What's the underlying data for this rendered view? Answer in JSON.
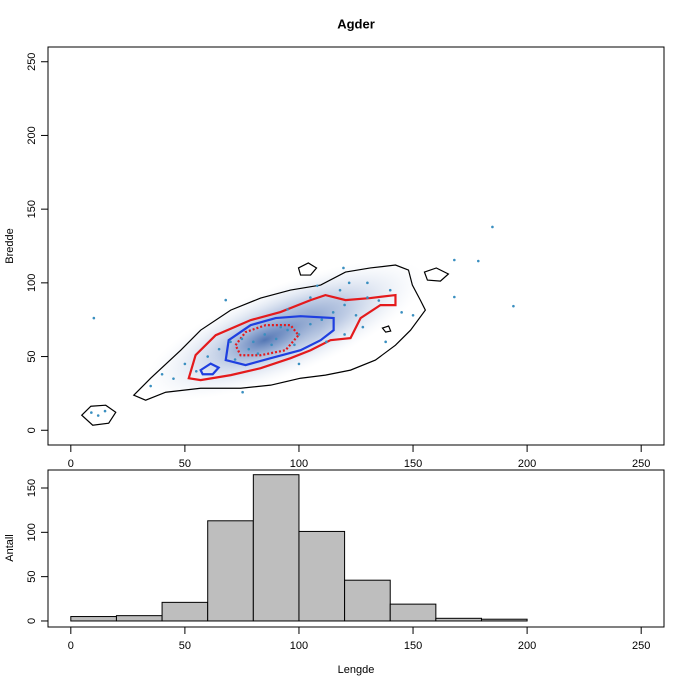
{
  "chart_data": [
    {
      "type": "scatter",
      "title": "Agder",
      "y_label": "Bredde",
      "color": "#3a8fc0",
      "x": [
        10.1,
        67.9,
        184.8,
        168.1,
        178.6,
        194.0,
        168.1,
        75.3,
        119.5,
        80,
        85,
        90,
        78,
        95,
        88,
        92,
        75,
        100,
        82,
        98,
        105,
        110,
        115,
        120,
        125,
        130,
        135,
        140,
        145,
        150,
        60,
        55,
        50,
        45,
        35,
        40,
        65,
        70,
        72,
        100,
        112,
        120,
        128,
        138,
        118,
        105,
        95,
        9,
        12,
        15,
        122,
        130,
        108
      ],
      "y": [
        76.1,
        88.3,
        137.9,
        115.5,
        114.8,
        84.2,
        90.4,
        25.8,
        110.1,
        60,
        65,
        62,
        55,
        68,
        58,
        70,
        62,
        65,
        52,
        58,
        72,
        75,
        80,
        85,
        78,
        90,
        88,
        95,
        80,
        78,
        50,
        40,
        45,
        35,
        30,
        38,
        55,
        60,
        48,
        45,
        60,
        65,
        70,
        60,
        95,
        90,
        82,
        12,
        10,
        13,
        100,
        100,
        98
      ],
      "contours": [
        {
          "color": "#000000",
          "style": "solid",
          "x": [
            27.6,
            35.0,
            48.2,
            56.9,
            70.1,
            83.2,
            96.3,
            109.5,
            120.4,
            131.3,
            142.3,
            148.0,
            149.7,
            153.2,
            155.4,
            148.9,
            142.3,
            133.5,
            122.6,
            111.6,
            100.7,
            87.6,
            74.4,
            56.9,
            41.6,
            32.8
          ],
          "y": [
            23.8,
            35.3,
            54.3,
            67.9,
            81.5,
            89.7,
            95.1,
            98.5,
            107.3,
            110.1,
            112.1,
            108.7,
            98.5,
            88.3,
            81.5,
            67.9,
            57.7,
            47.6,
            40.8,
            37.4,
            35.3,
            30.6,
            28.5,
            28.5,
            25.8,
            20.4
          ]
        },
        {
          "color": "#000000",
          "style": "solid",
          "x": [
            4.8,
            8.8,
            15.3,
            19.7,
            16.6,
            9.6
          ],
          "y": [
            10.2,
            16.3,
            17.0,
            12.2,
            4.8,
            3.4
          ]
        },
        {
          "color": "#000000",
          "style": "solid",
          "x": [
            99.8,
            104.1,
            107.7,
            105.1,
            100.7
          ],
          "y": [
            110.1,
            113.5,
            110.1,
            105.3,
            105.3
          ]
        },
        {
          "color": "#000000",
          "style": "solid",
          "x": [
            155.0,
            160.2,
            165.5,
            162.0,
            156.3
          ],
          "y": [
            107.3,
            110.1,
            106.0,
            101.2,
            101.9
          ]
        },
        {
          "color": "#000000",
          "style": "solid",
          "x": [
            136.6,
            139.3,
            140.2,
            138.0
          ],
          "y": [
            69.3,
            70.7,
            67.3,
            66.6
          ]
        },
        {
          "color": "#e41a1c",
          "style": "solid",
          "x": [
            51.7,
            54.7,
            63.5,
            78.8,
            91.9,
            105.1,
            111.6,
            120.4,
            131.3,
            142.3,
            142.3,
            135.7,
            127.0,
            122.6,
            113.8,
            105.1,
            96.3,
            83.2,
            70.1,
            56.9
          ],
          "y": [
            35.3,
            51.0,
            64.5,
            74.7,
            80.2,
            88.3,
            91.7,
            88.3,
            89.7,
            91.7,
            84.9,
            84.9,
            76.1,
            62.5,
            61.1,
            54.3,
            48.9,
            42.1,
            37.4,
            34.0
          ]
        },
        {
          "color": "#1f3fe0",
          "style": "solid",
          "x": [
            67.9,
            69.2,
            78.8,
            89.8,
            100.7,
            115.2,
            115.2,
            109.5,
            100.7,
            87.6,
            76.6
          ],
          "y": [
            47.6,
            61.1,
            71.3,
            76.1,
            77.4,
            76.1,
            67.9,
            61.1,
            54.3,
            48.9,
            44.2
          ]
        },
        {
          "color": "#1f3fe0",
          "style": "solid",
          "x": [
            56.9,
            61.3,
            64.8,
            62.2,
            57.8
          ],
          "y": [
            40.8,
            45.2,
            42.5,
            38.0,
            38.0
          ]
        },
        {
          "color": "#e41a1c",
          "style": "dotted",
          "x": [
            72.2,
            76.6,
            85.4,
            96.3,
            99.8,
            94.1,
            83.2,
            74.4
          ],
          "y": [
            57.7,
            66.6,
            71.3,
            71.3,
            64.5,
            54.3,
            50.9,
            50.9
          ]
        }
      ],
      "xlim": [
        -10,
        260
      ],
      "ylim": [
        -10,
        260
      ],
      "xticks": [
        0,
        50,
        100,
        150,
        200,
        250
      ],
      "yticks": [
        0,
        50,
        100,
        150,
        200,
        250
      ]
    },
    {
      "type": "histogram",
      "y_label": "Antall",
      "x_label": "Lengde",
      "color": "#bebebe",
      "bins": [
        0,
        20,
        40,
        60,
        80,
        100,
        120,
        140,
        160,
        180,
        200
      ],
      "values": [
        5,
        6,
        21,
        113,
        165,
        101,
        46,
        19,
        3,
        2
      ],
      "xlim": [
        -10,
        260
      ],
      "ylim": [
        -6.8,
        170.3
      ],
      "xticks": [
        0,
        50,
        100,
        150,
        200,
        250
      ],
      "yticks": [
        0,
        50,
        100,
        150
      ]
    }
  ]
}
